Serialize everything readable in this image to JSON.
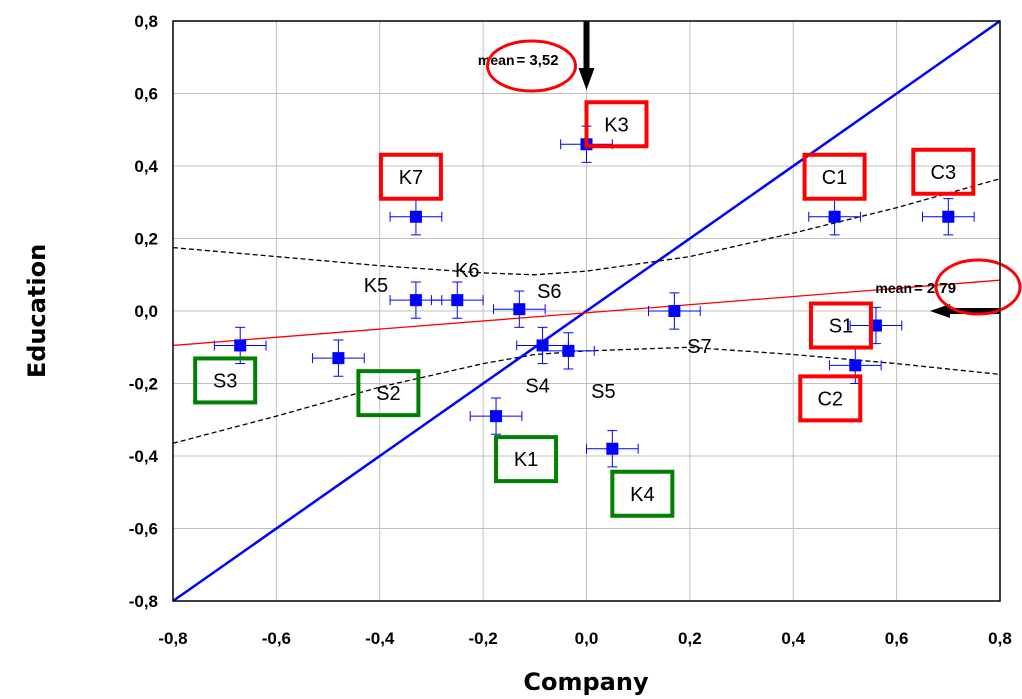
{
  "chart_data": {
    "type": "scatter",
    "xlabel": "Company",
    "ylabel": "Education",
    "xlim": [
      -0.8,
      0.8
    ],
    "ylim": [
      -0.8,
      0.8
    ],
    "xticks": [
      "-0,8",
      "-0,6",
      "-0,4",
      "-0,2",
      "0,0",
      "0,2",
      "0,4",
      "0,6",
      "0,8"
    ],
    "yticks": [
      "0,8",
      "0,6",
      "0,4",
      "0,2",
      "0,0",
      "-0,2",
      "-0,4",
      "-0,6",
      "-0,8"
    ],
    "grid": true,
    "points": [
      {
        "label": "K3",
        "x": 0.0,
        "y": 0.46,
        "xerr": 0.05,
        "yerr": 0.05,
        "box": "red"
      },
      {
        "label": "K7",
        "x": -0.33,
        "y": 0.26,
        "xerr": 0.05,
        "yerr": 0.05,
        "box": "red"
      },
      {
        "label": "C1",
        "x": 0.48,
        "y": 0.26,
        "xerr": 0.05,
        "yerr": 0.05,
        "box": "red"
      },
      {
        "label": "C3",
        "x": 0.7,
        "y": 0.26,
        "xerr": 0.05,
        "yerr": 0.05,
        "box": "red"
      },
      {
        "label": "K5",
        "x": -0.33,
        "y": 0.03,
        "xerr": 0.05,
        "yerr": 0.05,
        "box": ""
      },
      {
        "label": "K6",
        "x": -0.25,
        "y": 0.03,
        "xerr": 0.05,
        "yerr": 0.05,
        "box": ""
      },
      {
        "label": "S6",
        "x": -0.13,
        "y": 0.005,
        "xerr": 0.05,
        "yerr": 0.05,
        "box": ""
      },
      {
        "label": "S7",
        "x": 0.17,
        "y": 0.0,
        "xerr": 0.05,
        "yerr": 0.05,
        "box": ""
      },
      {
        "label": "S1",
        "x": 0.56,
        "y": -0.04,
        "xerr": 0.05,
        "yerr": 0.05,
        "box": "red"
      },
      {
        "label": "C2",
        "x": 0.52,
        "y": -0.15,
        "xerr": 0.05,
        "yerr": 0.05,
        "box": "red"
      },
      {
        "label": "S3",
        "x": -0.67,
        "y": -0.095,
        "xerr": 0.05,
        "yerr": 0.05,
        "box": "green"
      },
      {
        "label": "S2",
        "x": -0.48,
        "y": -0.13,
        "xerr": 0.05,
        "yerr": 0.05,
        "box": "green"
      },
      {
        "label": "S4",
        "x": -0.085,
        "y": -0.095,
        "xerr": 0.05,
        "yerr": 0.05,
        "box": ""
      },
      {
        "label": "S5",
        "x": -0.035,
        "y": -0.11,
        "xerr": 0.05,
        "yerr": 0.05,
        "box": ""
      },
      {
        "label": "K1",
        "x": -0.175,
        "y": -0.29,
        "xerr": 0.05,
        "yerr": 0.05,
        "box": "green"
      },
      {
        "label": "K4",
        "x": 0.05,
        "y": -0.38,
        "xerr": 0.05,
        "yerr": 0.05,
        "box": "green"
      }
    ],
    "diagonal": {
      "from": [
        -0.8,
        -0.8
      ],
      "to": [
        0.8,
        0.8
      ],
      "color": "#0000ff"
    },
    "regression_line": {
      "from": [
        -0.8,
        -0.095
      ],
      "to": [
        0.8,
        0.085
      ],
      "color": "#ff0000"
    },
    "confidence_band": {
      "upper": [
        [
          -0.8,
          0.175
        ],
        [
          -0.6,
          0.15
        ],
        [
          -0.4,
          0.125
        ],
        [
          -0.2,
          0.105
        ],
        [
          -0.1,
          0.1
        ],
        [
          0.0,
          0.11
        ],
        [
          0.2,
          0.15
        ],
        [
          0.4,
          0.215
        ],
        [
          0.6,
          0.285
        ],
        [
          0.8,
          0.365
        ]
      ],
      "lower": [
        [
          -0.8,
          -0.365
        ],
        [
          -0.6,
          -0.29
        ],
        [
          -0.4,
          -0.21
        ],
        [
          -0.2,
          -0.145
        ],
        [
          -0.1,
          -0.12
        ],
        [
          0.0,
          -0.11
        ],
        [
          0.2,
          -0.1
        ],
        [
          0.4,
          -0.12
        ],
        [
          0.6,
          -0.145
        ],
        [
          0.8,
          -0.175
        ]
      ],
      "color": "#000000"
    },
    "annotations": [
      {
        "text": "mean",
        "value": "= 3,52",
        "axis": "x",
        "at": 0.0
      },
      {
        "text": "mean",
        "value": "= 2,79",
        "axis": "y",
        "at": 0.0
      }
    ],
    "colors": {
      "points": "#0000ff",
      "red_box": "#ff0000",
      "green_box": "#008000",
      "grid": "#c0c0c0"
    }
  }
}
